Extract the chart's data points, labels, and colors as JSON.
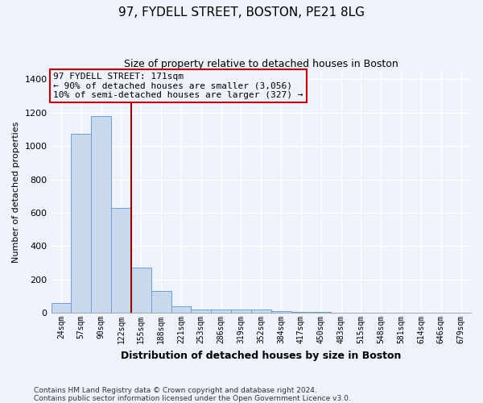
{
  "title": "97, FYDELL STREET, BOSTON, PE21 8LG",
  "subtitle": "Size of property relative to detached houses in Boston",
  "xlabel": "Distribution of detached houses by size in Boston",
  "ylabel": "Number of detached properties",
  "bar_color": "#c8d9ee",
  "bar_edge_color": "#6a9fd8",
  "categories": [
    "24sqm",
    "57sqm",
    "90sqm",
    "122sqm",
    "155sqm",
    "188sqm",
    "221sqm",
    "253sqm",
    "286sqm",
    "319sqm",
    "352sqm",
    "384sqm",
    "417sqm",
    "450sqm",
    "483sqm",
    "515sqm",
    "548sqm",
    "581sqm",
    "614sqm",
    "646sqm",
    "679sqm"
  ],
  "values": [
    60,
    1075,
    1180,
    630,
    270,
    130,
    40,
    18,
    18,
    18,
    18,
    12,
    6,
    4,
    3,
    2,
    2,
    1,
    1,
    1,
    1
  ],
  "ylim": [
    0,
    1450
  ],
  "yticks": [
    0,
    200,
    400,
    600,
    800,
    1000,
    1200,
    1400
  ],
  "vline_x": 3.5,
  "vline_color": "#990000",
  "annotation_line1": "97 FYDELL STREET: 171sqm",
  "annotation_line2": "← 90% of detached houses are smaller (3,056)",
  "annotation_line3": "10% of semi-detached houses are larger (327) →",
  "annotation_box_color": "#cc0000",
  "footer": "Contains HM Land Registry data © Crown copyright and database right 2024.\nContains public sector information licensed under the Open Government Licence v3.0.",
  "bg_color": "#eef2fb",
  "grid_color": "#ffffff",
  "title_fontsize": 11,
  "subtitle_fontsize": 9,
  "ylabel_fontsize": 8,
  "xlabel_fontsize": 9
}
